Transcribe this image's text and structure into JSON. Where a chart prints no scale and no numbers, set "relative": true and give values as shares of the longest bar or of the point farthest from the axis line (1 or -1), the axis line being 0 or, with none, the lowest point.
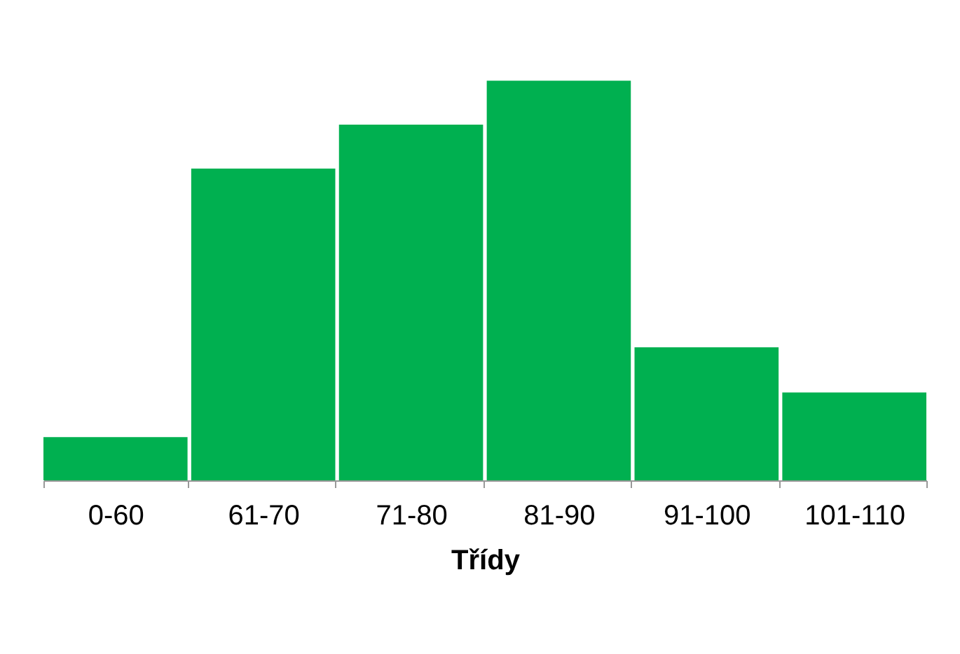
{
  "chart_data": {
    "type": "bar",
    "relative": true,
    "categories": [
      "0-60",
      "61-70",
      "71-80",
      "81-90",
      "91-100",
      "101-110"
    ],
    "values": [
      0.108,
      0.78,
      0.89,
      1,
      0.333,
      0.22
    ],
    "color": "#00b050",
    "xlabel": "Třídy",
    "grid": false
  }
}
